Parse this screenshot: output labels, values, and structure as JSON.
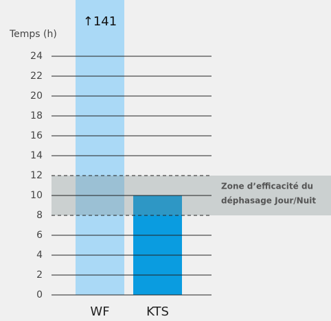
{
  "chart_data": {
    "type": "bar",
    "y_label": "Temps (h)",
    "categories": [
      "WF",
      "KTS"
    ],
    "values": [
      141,
      10
    ],
    "value_labels": [
      "↑141",
      null
    ],
    "colors": [
      "#aad9f6",
      "#0a9ce0"
    ],
    "ylim": [
      0,
      24
    ],
    "yticks": [
      0,
      2,
      4,
      6,
      8,
      10,
      12,
      14,
      16,
      18,
      20,
      22,
      24
    ],
    "grid": true,
    "zone": {
      "range": [
        8,
        12
      ],
      "label": [
        "Zone d’efficacité du",
        "déphasage Jour/Nuit"
      ]
    }
  }
}
